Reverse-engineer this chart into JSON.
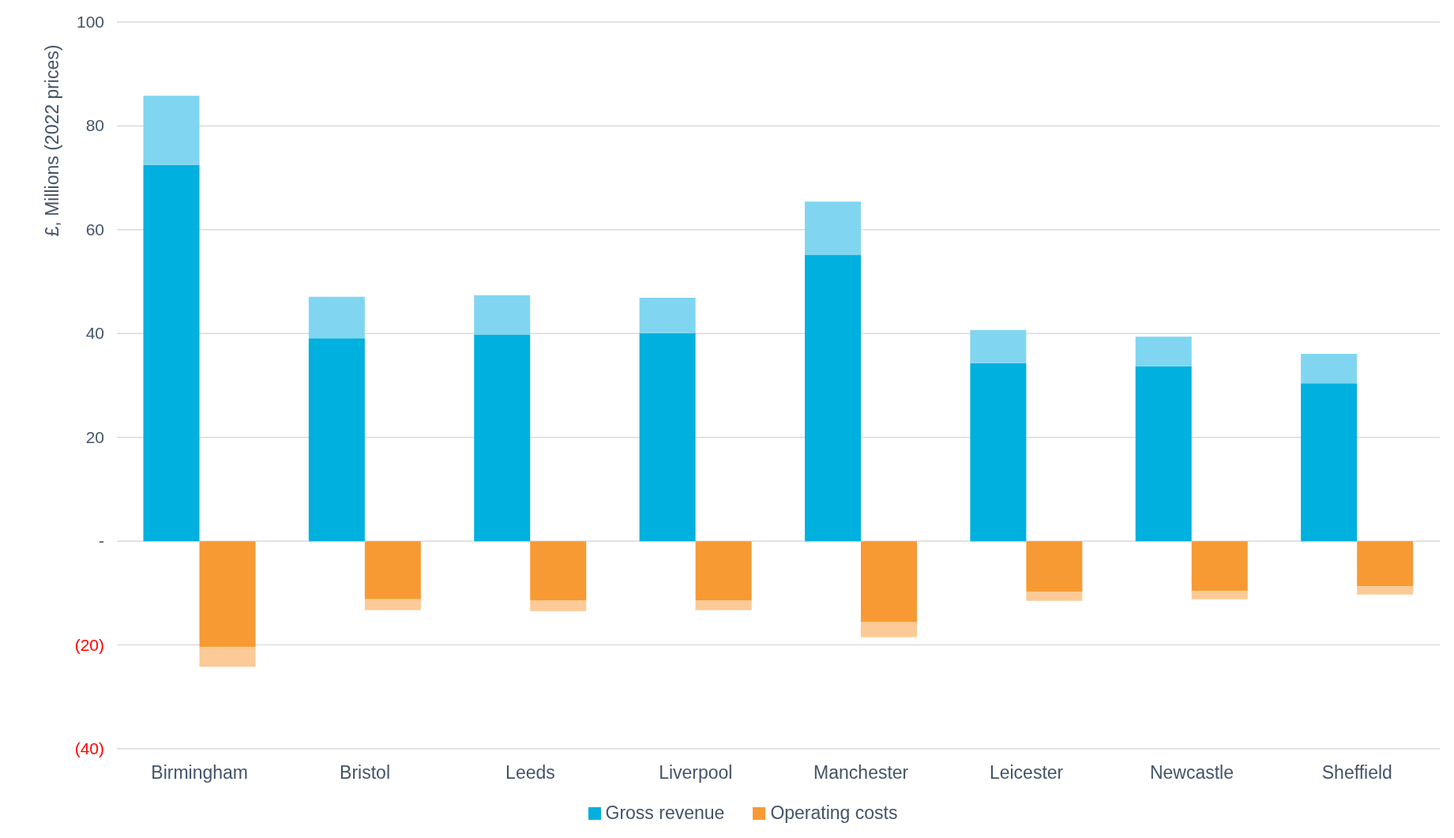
{
  "chart_data": {
    "type": "bar",
    "ylabel": "£, Millions  (2022 prices)",
    "categories": [
      "Birmingham",
      "Bristol",
      "Leeds",
      "Liverpool",
      "Manchester",
      "Leicester",
      "Newcastle",
      "Sheffield"
    ],
    "stacked": true,
    "series": [
      {
        "name": "Gross revenue",
        "color": "#00b0de",
        "values": [
          72.5,
          39.1,
          39.8,
          40.1,
          55.2,
          34.3,
          33.7,
          30.4
        ]
      },
      {
        "color": "#80d6f0",
        "values": [
          13.3,
          8.0,
          7.6,
          6.8,
          10.2,
          6.4,
          5.7,
          5.7
        ]
      },
      {
        "name": "Operating costs",
        "color": "#f89a33",
        "values": [
          -20.4,
          -11.2,
          -11.4,
          -11.4,
          -15.6,
          -9.8,
          -9.6,
          -8.7
        ]
      },
      {
        "color": "#fbca96",
        "values": [
          -3.8,
          -2.1,
          -2.1,
          -1.9,
          -2.9,
          -1.7,
          -1.6,
          -1.6
        ]
      }
    ],
    "ylim": [
      -40,
      100
    ],
    "yticks": [
      {
        "value": -40,
        "label": "(40)"
      },
      {
        "value": -20,
        "label": "(20)"
      },
      {
        "value": 0,
        "label": "-"
      },
      20,
      40,
      60,
      80,
      100
    ],
    "grid": "y",
    "legend": "bottom"
  }
}
